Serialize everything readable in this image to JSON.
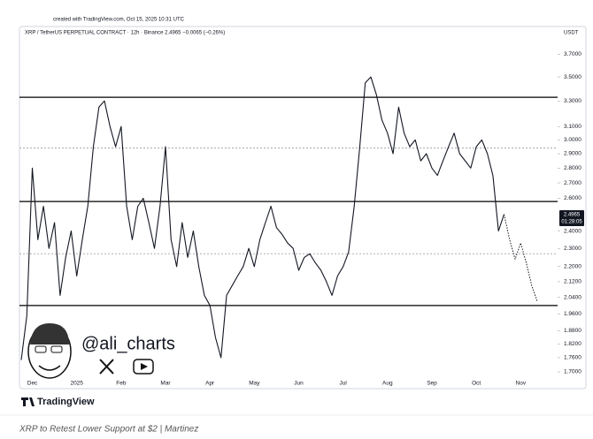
{
  "page": {
    "created": "created with TradingView.com, Oct 15, 2025 10:31 UTC",
    "symbol": "XRP / TetherUS PERPETUAL CONTRACT · 12h · Binance  2.4965  −0.0065 (−0.26%)",
    "currency": "USDT",
    "last_price": "2.4965",
    "countdown": "01:28:05",
    "watermark": "@ali_charts",
    "brand": "TradingView",
    "caption": "XRP to Retest Lower Support at $2 | Martinez"
  },
  "chart_data": {
    "type": "line",
    "log_scale": true,
    "categories": [
      null,
      null,
      "Dec",
      null,
      null,
      null,
      null,
      null,
      null,
      null,
      "2025",
      null,
      null,
      null,
      null,
      null,
      null,
      null,
      "Feb",
      null,
      null,
      null,
      null,
      null,
      null,
      null,
      "Mar",
      null,
      null,
      null,
      null,
      null,
      null,
      null,
      "Apr",
      null,
      null,
      null,
      null,
      null,
      null,
      null,
      "May",
      null,
      null,
      null,
      null,
      null,
      null,
      null,
      "Jun",
      null,
      null,
      null,
      null,
      null,
      null,
      null,
      "Jul",
      null,
      null,
      null,
      null,
      null,
      null,
      null,
      "Aug",
      null,
      null,
      null,
      null,
      null,
      null,
      null,
      "Sep",
      null,
      null,
      null,
      null,
      null,
      null,
      null,
      "Oct",
      null,
      null,
      null,
      null,
      null,
      null,
      null,
      "Nov",
      null,
      null,
      null
    ],
    "series": [
      {
        "color": "#131722",
        "values": [
          1.75,
          1.95,
          2.8,
          2.35,
          2.55,
          2.3,
          2.45,
          2.05,
          2.25,
          2.4,
          2.15,
          2.35,
          2.55,
          2.95,
          3.25,
          3.3,
          3.1,
          2.95,
          3.1,
          2.55,
          2.35,
          2.55,
          2.6,
          2.45,
          2.3,
          2.55,
          2.95,
          2.35,
          2.2,
          2.45,
          2.25,
          2.4,
          2.2,
          2.05,
          2.0,
          1.85,
          1.76,
          2.05,
          2.1,
          2.15,
          2.2,
          2.3,
          2.2,
          2.35,
          2.45,
          2.55,
          2.42,
          2.38,
          2.33,
          2.3,
          2.18,
          2.25,
          2.27,
          2.22,
          2.18,
          2.12,
          2.05,
          2.15,
          2.2,
          2.28,
          2.55,
          2.95,
          3.45,
          3.5,
          3.35,
          3.15,
          3.05,
          2.9,
          3.25,
          3.05,
          2.95,
          3.0,
          2.85,
          2.9,
          2.8,
          2.75,
          2.85,
          2.95,
          3.05,
          2.9,
          2.85,
          2.8,
          2.95,
          3.0,
          2.9,
          2.75,
          2.4,
          2.5,
          null,
          null,
          null,
          null,
          null,
          null
        ]
      },
      {
        "color": "#131722",
        "dashed": true,
        "values": [
          null,
          null,
          null,
          null,
          null,
          null,
          null,
          null,
          null,
          null,
          null,
          null,
          null,
          null,
          null,
          null,
          null,
          null,
          null,
          null,
          null,
          null,
          null,
          null,
          null,
          null,
          null,
          null,
          null,
          null,
          null,
          null,
          null,
          null,
          null,
          null,
          null,
          null,
          null,
          null,
          null,
          null,
          null,
          null,
          null,
          null,
          null,
          null,
          null,
          null,
          null,
          null,
          null,
          null,
          null,
          null,
          null,
          null,
          null,
          null,
          null,
          null,
          null,
          null,
          null,
          null,
          null,
          null,
          null,
          null,
          null,
          null,
          null,
          null,
          null,
          null,
          null,
          null,
          null,
          null,
          null,
          null,
          null,
          null,
          null,
          null,
          null,
          2.5,
          2.35,
          2.24,
          2.33,
          2.22,
          2.1,
          2.02
        ]
      }
    ],
    "levels": [
      3.33,
      2.58,
      2.0
    ],
    "dotted_levels": [
      2.94,
      2.27
    ],
    "ylim": [
      1.66,
      3.85
    ],
    "yticks": [
      {
        "value": 3.7,
        "label": "3.7000"
      },
      {
        "value": 3.5,
        "label": "3.5000"
      },
      {
        "value": 3.3,
        "label": "3.3000"
      },
      {
        "value": 3.1,
        "label": "3.1000"
      },
      {
        "value": 3.0,
        "label": "3.0000"
      },
      {
        "value": 2.9,
        "label": "2.9000"
      },
      {
        "value": 2.8,
        "label": "2.8000"
      },
      {
        "value": 2.7,
        "label": "2.7000"
      },
      {
        "value": 2.6,
        "label": "2.6000"
      },
      {
        "value": 2.4,
        "label": "2.4000"
      },
      {
        "value": 2.3,
        "label": "2.3000"
      },
      {
        "value": 2.2,
        "label": "2.2000"
      },
      {
        "value": 2.12,
        "label": "2.1200"
      },
      {
        "value": 2.04,
        "label": "2.0400"
      },
      {
        "value": 1.96,
        "label": "1.9600"
      },
      {
        "value": 1.88,
        "label": "1.8800"
      },
      {
        "value": 1.82,
        "label": "1.8200"
      },
      {
        "value": 1.76,
        "label": "1.7600"
      },
      {
        "value": 1.7,
        "label": "1.7000"
      }
    ]
  }
}
